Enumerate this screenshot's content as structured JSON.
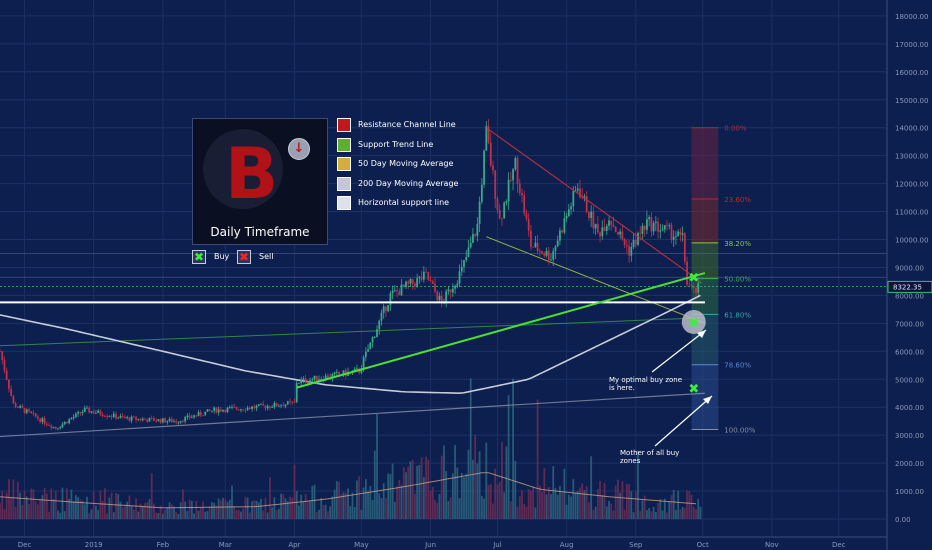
{
  "chart_data": {
    "type": "candlestick",
    "x_ticks": [
      "Dec",
      "2019",
      "Feb",
      "Mar",
      "Apr",
      "May",
      "Jun",
      "Jul",
      "Aug",
      "Sep",
      "Oct",
      "Nov",
      "Dec"
    ],
    "y_ticks": [
      "18000.00",
      "17000.00",
      "16000.00",
      "15000.00",
      "14000.00",
      "13000.00",
      "12000.00",
      "11000.00",
      "10000.00",
      "9000.00",
      "8000.00",
      "7000.00",
      "6000.00",
      "5000.00",
      "4000.00",
      "3000.00",
      "2000.00",
      "1000.00",
      "0.00"
    ],
    "ylim": [
      -500,
      18700
    ],
    "last_price": "8322.35",
    "price_keypoints": [
      [
        "2018-11-20",
        6000
      ],
      [
        "2018-11-26",
        4100
      ],
      [
        "2018-12-15",
        3250
      ],
      [
        "2018-12-28",
        3900
      ],
      [
        "2019-01-15",
        3600
      ],
      [
        "2019-02-07",
        3500
      ],
      [
        "2019-02-24",
        3900
      ],
      [
        "2019-03-15",
        4000
      ],
      [
        "2019-04-01",
        4150
      ],
      [
        "2019-04-02",
        4900
      ],
      [
        "2019-04-30",
        5300
      ],
      [
        "2019-05-14",
        8000
      ],
      [
        "2019-05-30",
        8700
      ],
      [
        "2019-06-06",
        7700
      ],
      [
        "2019-06-15",
        8900
      ],
      [
        "2019-06-22",
        10500
      ],
      [
        "2019-06-26",
        13800
      ],
      [
        "2019-07-02",
        10700
      ],
      [
        "2019-07-09",
        12700
      ],
      [
        "2019-07-16",
        9800
      ],
      [
        "2019-07-25",
        9400
      ],
      [
        "2019-08-06",
        11900
      ],
      [
        "2019-08-15",
        10200
      ],
      [
        "2019-08-20",
        10800
      ],
      [
        "2019-08-29",
        9600
      ],
      [
        "2019-09-06",
        10600
      ],
      [
        "2019-09-18",
        10200
      ],
      [
        "2019-09-22",
        10000
      ],
      [
        "2019-09-24",
        8500
      ],
      [
        "2019-09-27",
        8100
      ],
      [
        "2019-09-30",
        8322
      ]
    ],
    "ma200_keypoints": [
      [
        "2018-11-20",
        7300
      ],
      [
        "2018-12-20",
        6800
      ],
      [
        "2019-02-01",
        6000
      ],
      [
        "2019-03-10",
        5300
      ],
      [
        "2019-04-15",
        4800
      ],
      [
        "2019-05-20",
        4550
      ],
      [
        "2019-06-15",
        4500
      ],
      [
        "2019-07-15",
        5000
      ],
      [
        "2019-08-15",
        6200
      ],
      [
        "2019-09-15",
        7400
      ],
      [
        "2019-09-30",
        8000
      ]
    ],
    "volume_keypoints": [
      [
        "2018-11-20",
        900
      ],
      [
        "2018-12-20",
        700
      ],
      [
        "2019-02-01",
        450
      ],
      [
        "2019-03-15",
        500
      ],
      [
        "2019-04-15",
        800
      ],
      [
        "2019-05-20",
        1300
      ],
      [
        "2019-06-26",
        1900
      ],
      [
        "2019-07-20",
        1200
      ],
      [
        "2019-08-20",
        900
      ],
      [
        "2019-09-30",
        600
      ]
    ],
    "lines": {
      "resistance_channel": [
        [
          "2019-06-26",
          14000
        ],
        [
          "2019-09-30",
          8500
        ]
      ],
      "resistance_channel_lower": [
        [
          "2019-06-26",
          10100
        ],
        [
          "2019-10-02",
          7000
        ]
      ],
      "support_trend_short": [
        [
          "2019-04-02",
          4700
        ],
        [
          "2019-10-02",
          8800
        ]
      ],
      "support_trend_long": [
        [
          "2018-11-20",
          6200
        ],
        [
          "2019-10-02",
          7200
        ]
      ],
      "horizontal_support": 7750,
      "horizontal_faint": [
        9500,
        8650
      ],
      "lower_trend": [
        [
          "2018-11-20",
          2950
        ],
        [
          "2019-10-02",
          4500
        ]
      ]
    },
    "fibonacci": [
      {
        "label": "0.00%",
        "value": 14000,
        "color": "#a03048"
      },
      {
        "label": "23.60%",
        "value": 11450,
        "color": "#c02828"
      },
      {
        "label": "38.20%",
        "value": 9880,
        "color": "#8ac840"
      },
      {
        "label": "50.00%",
        "value": 8600,
        "color": "#3cb050"
      },
      {
        "label": "61.80%",
        "value": 7320,
        "color": "#3aa8a8"
      },
      {
        "label": "78.60%",
        "value": 5520,
        "color": "#5a8ad8"
      },
      {
        "label": "100.00%",
        "value": 3200,
        "color": "#8890a8"
      }
    ],
    "fib_range_dates": [
      "2019-09-26",
      "2019-10-08"
    ],
    "markers": [
      {
        "type": "buy",
        "date": "2019-09-27",
        "value": 8650
      },
      {
        "type": "buy",
        "date": "2019-09-27",
        "value": 7050
      },
      {
        "type": "buy",
        "date": "2019-09-27",
        "value": 4680
      }
    ],
    "colors": {
      "up": "#3aa88a",
      "down": "#c0304a",
      "ma200": "#c8ccd8",
      "resistance": "#c03040",
      "support": "#4ae030",
      "horizontal": "#ffffff",
      "background": "#0d1f4e"
    }
  },
  "panel": {
    "title": "Daily Timeframe",
    "coin_letter": "B",
    "arrow": "↓"
  },
  "legend": [
    {
      "color": "#c0181d",
      "label": "Resistance Channel Line"
    },
    {
      "color": "#5cb030",
      "label": "Support Trend Line"
    },
    {
      "color": "#d2ae3c",
      "label": "50 Day Moving Average"
    },
    {
      "color": "#c4c6da",
      "label": "200 Day Moving Average"
    },
    {
      "color": "#dfe1ea",
      "label": "Horizontal support line"
    }
  ],
  "buy_sell": {
    "buy_label": "Buy",
    "sell_label": "Sell",
    "buy_glyph": "✖",
    "sell_glyph": "✖",
    "buy_color": "#3af03a",
    "sell_color": "#ff2020"
  },
  "annotations": {
    "optimal": "My optimal buy zone is here.",
    "mother": "Mother of all buy zones"
  }
}
